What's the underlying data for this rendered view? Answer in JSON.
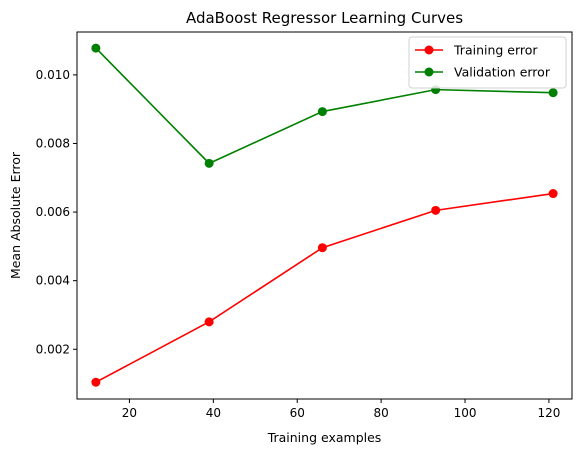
{
  "chart_data": {
    "type": "line",
    "title": "AdaBoost Regressor Learning Curves",
    "xlabel": "Training examples",
    "ylabel": "Mean Absolute Error",
    "xlim": [
      7.5,
      125.5
    ],
    "ylim": [
      0.00055,
      0.01125
    ],
    "x": [
      12,
      39,
      66,
      93,
      121
    ],
    "x_ticks": [
      20,
      40,
      60,
      80,
      100,
      120
    ],
    "x_tick_labels": [
      "20",
      "40",
      "60",
      "80",
      "100",
      "120"
    ],
    "y_ticks": [
      0.002,
      0.004,
      0.006,
      0.008,
      0.01
    ],
    "y_tick_labels": [
      "0.002",
      "0.004",
      "0.006",
      "0.008",
      "0.010"
    ],
    "grid": false,
    "legend_position": "top-right",
    "series": [
      {
        "name": "Training error",
        "color": "#ff0000",
        "marker": "circle",
        "values": [
          0.00104,
          0.0028,
          0.00496,
          0.00605,
          0.00654
        ]
      },
      {
        "name": "Validation error",
        "color": "#008000",
        "marker": "circle",
        "values": [
          0.01078,
          0.00742,
          0.00893,
          0.00957,
          0.00948
        ]
      }
    ]
  }
}
